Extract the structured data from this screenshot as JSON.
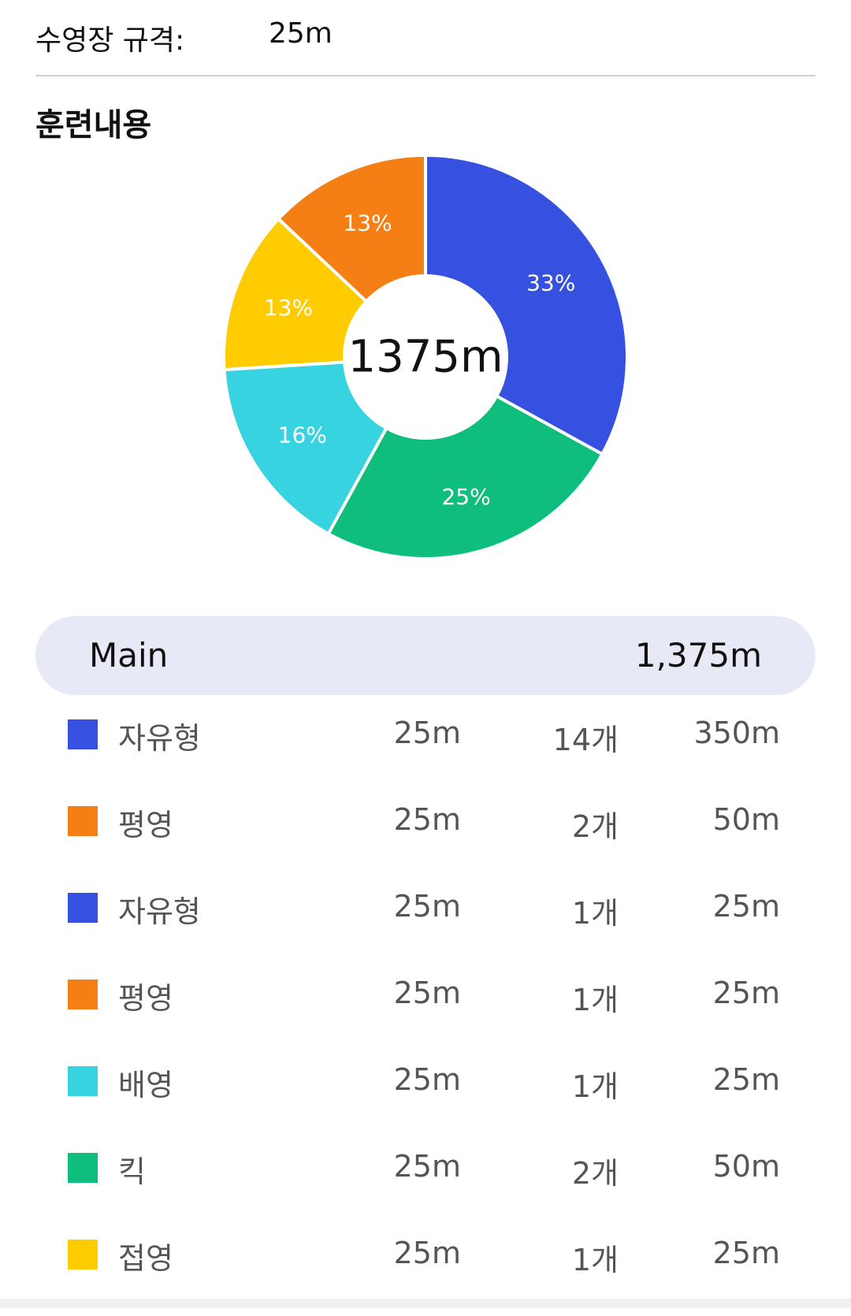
{
  "pool": {
    "label": "수영장 규격:",
    "value": "25m"
  },
  "section_title": "훈련내용",
  "chart_data": {
    "type": "pie",
    "center_label": "1375m",
    "slices": [
      {
        "label": "33%",
        "value": 33,
        "color": "#3651e0"
      },
      {
        "label": "25%",
        "value": 25,
        "color": "#0fbe7c"
      },
      {
        "label": "16%",
        "value": 16,
        "color": "#37d3e0"
      },
      {
        "label": "13%",
        "value": 13,
        "color": "#ffcc00"
      },
      {
        "label": "13%",
        "value": 13,
        "color": "#f47f15"
      }
    ]
  },
  "main": {
    "label": "Main",
    "total": "1,375m"
  },
  "rows": [
    {
      "name": "자유형",
      "length": "25m",
      "count": "14개",
      "distance": "350m",
      "color": "#3651e0"
    },
    {
      "name": "평영",
      "length": "25m",
      "count": "2개",
      "distance": "50m",
      "color": "#f47f15"
    },
    {
      "name": "자유형",
      "length": "25m",
      "count": "1개",
      "distance": "25m",
      "color": "#3651e0"
    },
    {
      "name": "평영",
      "length": "25m",
      "count": "1개",
      "distance": "25m",
      "color": "#f47f15"
    },
    {
      "name": "배영",
      "length": "25m",
      "count": "1개",
      "distance": "25m",
      "color": "#37d3e0"
    },
    {
      "name": "킥",
      "length": "25m",
      "count": "2개",
      "distance": "50m",
      "color": "#0fbe7c"
    },
    {
      "name": "접영",
      "length": "25m",
      "count": "1개",
      "distance": "25m",
      "color": "#ffcc00"
    }
  ]
}
